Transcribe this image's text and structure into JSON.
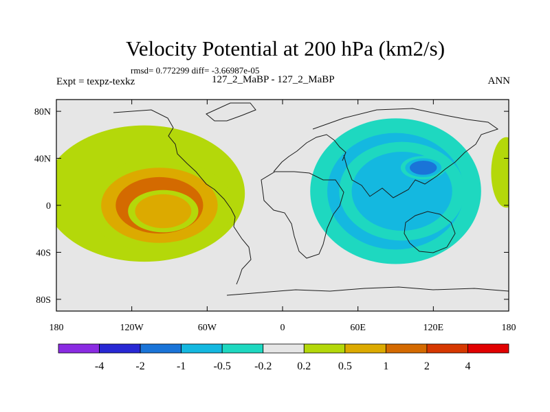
{
  "chart_data": {
    "type": "filled-contour-map",
    "title": "Velocity Potential at 200 hPa (km2/s)",
    "stats_text": "rmsd= 0.772299  diff= -3.66987e-05",
    "left_label": "Expt = texpz-texkz",
    "center_label": "127_2_MaBP - 127_2_MaBP",
    "right_label": "ANN",
    "x_ticks": [
      "180",
      "120W",
      "60W",
      "0",
      "60E",
      "120E",
      "180"
    ],
    "x_tick_values": [
      -180,
      -120,
      -60,
      0,
      60,
      120,
      180
    ],
    "y_ticks": [
      "80N",
      "40N",
      "0",
      "40S",
      "80S"
    ],
    "y_tick_values": [
      80,
      40,
      0,
      -40,
      -80
    ],
    "xlim": [
      -180,
      180
    ],
    "ylim": [
      -90,
      90
    ],
    "levels": [
      -4,
      -2,
      -1,
      -0.5,
      -0.2,
      0.2,
      0.5,
      1,
      2,
      4
    ],
    "level_labels": [
      "-4",
      "-2",
      "-1",
      "-0.5",
      "-0.2",
      "0.2",
      "0.5",
      "1",
      "2",
      "4"
    ],
    "colors": [
      "#8a2be2",
      "#2828d4",
      "#1a74d8",
      "#14b8e0",
      "#1ed8c0",
      "#e6e6e6",
      "#b4d80a",
      "#dcaa00",
      "#d46a00",
      "#d63800",
      "#e10000"
    ],
    "features": [
      {
        "name": "positive-main",
        "lon": -110,
        "lat": 10,
        "rx": 80,
        "ry": 58,
        "value": 0.35
      },
      {
        "name": "positive-core",
        "lon": -98,
        "lat": 0,
        "rx": 58,
        "ry": 40,
        "value": 0.95
      },
      {
        "name": "positive-max",
        "lon": -95,
        "lat": -5,
        "rx": 28,
        "ry": 18,
        "value": 0.8
      },
      {
        "name": "positive-east-edge",
        "lon": 178,
        "lat": 28,
        "rx": 12,
        "ry": 30,
        "value": 0.3
      },
      {
        "name": "negative-main",
        "lon": 90,
        "lat": 12,
        "rx": 68,
        "ry": 62,
        "value": -0.9
      },
      {
        "name": "negative-core",
        "lon": 95,
        "lat": 12,
        "rx": 50,
        "ry": 42,
        "value": -0.85
      },
      {
        "name": "negative-max",
        "lon": 112,
        "lat": 32,
        "rx": 18,
        "ry": 10,
        "value": -1.4
      }
    ]
  }
}
